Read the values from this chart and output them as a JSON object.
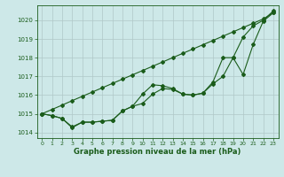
{
  "x": [
    0,
    1,
    2,
    3,
    4,
    5,
    6,
    7,
    8,
    9,
    10,
    11,
    12,
    13,
    14,
    15,
    16,
    17,
    18,
    19,
    20,
    21,
    22,
    23
  ],
  "line_straight": [
    1015.0,
    1015.23,
    1015.46,
    1015.7,
    1015.93,
    1016.16,
    1016.39,
    1016.62,
    1016.85,
    1017.08,
    1017.31,
    1017.54,
    1017.77,
    1018.0,
    1018.23,
    1018.46,
    1018.69,
    1018.92,
    1019.15,
    1019.38,
    1019.61,
    1019.84,
    1020.07,
    1020.4
  ],
  "line_upper": [
    1015.0,
    1014.9,
    1014.75,
    1014.3,
    1014.55,
    1014.55,
    1014.6,
    1014.65,
    1015.15,
    1015.4,
    1016.05,
    1016.55,
    1016.5,
    1016.35,
    1016.05,
    1016.0,
    1016.1,
    1016.7,
    1018.0,
    1018.0,
    1019.1,
    1019.7,
    1020.0,
    1020.5
  ],
  "line_lower": [
    1015.0,
    1014.9,
    1014.75,
    1014.25,
    1014.55,
    1014.55,
    1014.6,
    1014.65,
    1015.15,
    1015.4,
    1015.55,
    1016.05,
    1016.35,
    1016.3,
    1016.05,
    1016.0,
    1016.1,
    1016.6,
    1017.0,
    1018.0,
    1017.1,
    1018.7,
    1019.95,
    1020.4
  ],
  "bg_color": "#cde8e8",
  "line_color": "#1a5c1a",
  "grid_color": "#b0c8c8",
  "xlabel": "Graphe pression niveau de la mer (hPa)",
  "ylim": [
    1013.7,
    1020.8
  ],
  "xlim": [
    -0.5,
    23.5
  ],
  "yticks": [
    1014,
    1015,
    1016,
    1017,
    1018,
    1019,
    1020
  ],
  "xticks": [
    0,
    1,
    2,
    3,
    4,
    5,
    6,
    7,
    8,
    9,
    10,
    11,
    12,
    13,
    14,
    15,
    16,
    17,
    18,
    19,
    20,
    21,
    22,
    23
  ]
}
